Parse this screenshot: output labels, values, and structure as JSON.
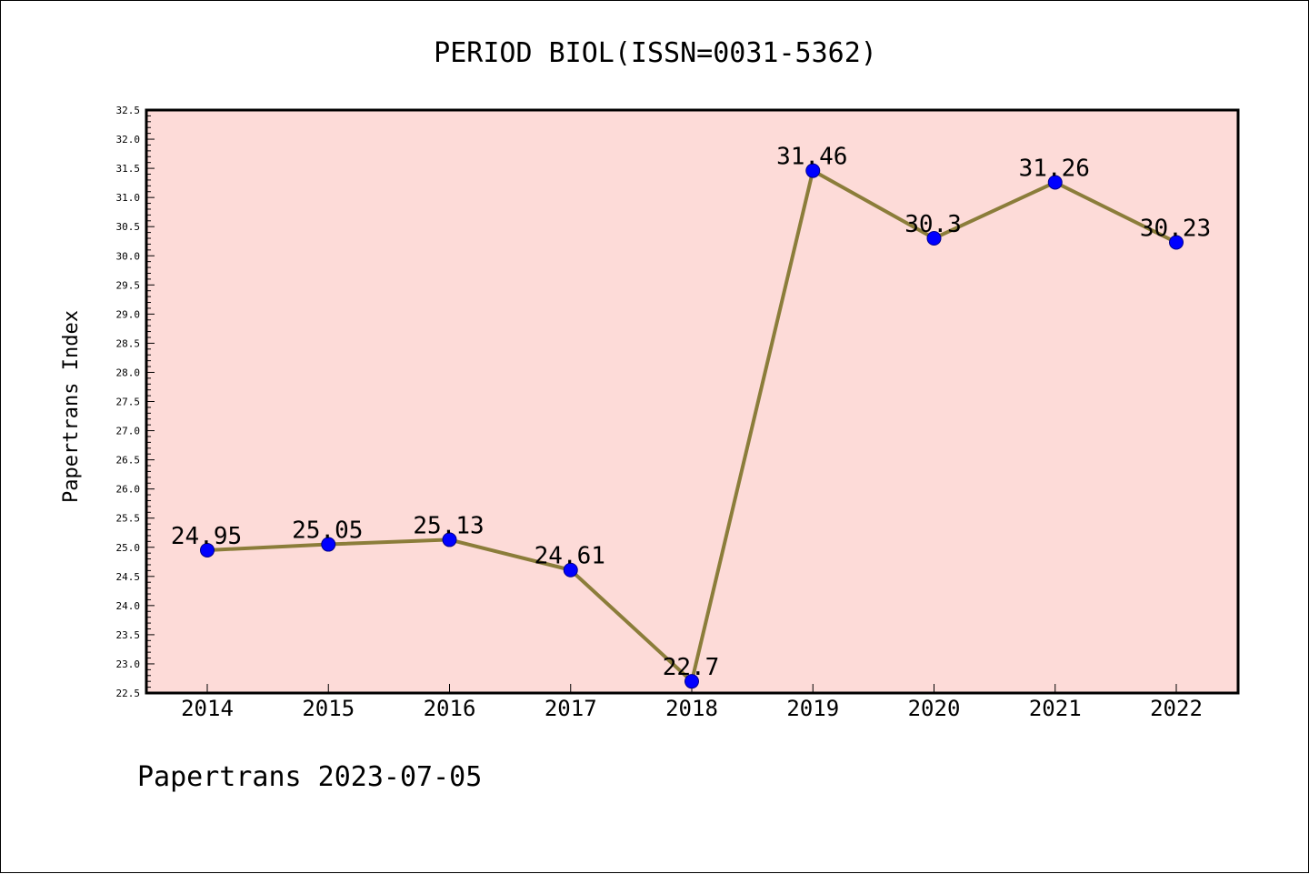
{
  "chart_data": {
    "type": "line",
    "title": "PERIOD BIOL(ISSN=0031-5362)",
    "xlabel": "",
    "ylabel": "Papertrans Index",
    "categories": [
      "2014",
      "2015",
      "2016",
      "2017",
      "2018",
      "2019",
      "2020",
      "2021",
      "2022"
    ],
    "values": [
      24.95,
      25.05,
      25.13,
      24.61,
      22.7,
      31.46,
      30.3,
      31.26,
      30.23
    ],
    "data_labels": [
      "24.95",
      "25.05",
      "25.13",
      "24.61",
      "22.7",
      "31.46",
      "30.3",
      "31.26",
      "30.23"
    ],
    "ylim": [
      22.5,
      32.5
    ],
    "y_major_step": 0.5,
    "y_minor_step": 0.1,
    "y_tick_labels": [
      "22.5",
      "23.0",
      "23.5",
      "24.0",
      "24.5",
      "25.0",
      "25.5",
      "26.0",
      "26.5",
      "27.0",
      "27.5",
      "28.0",
      "28.5",
      "29.0",
      "29.5",
      "30.0",
      "30.5",
      "31.0",
      "31.5",
      "32.0",
      "32.5"
    ],
    "grid": false,
    "legend": "none",
    "colors": {
      "plot_background": "#fddbd8",
      "line": "#8b7d3a",
      "marker_fill": "#0000ff",
      "marker_edge": "#00008b",
      "axes": "#000000"
    }
  },
  "footer": {
    "text": "Papertrans 2023-07-05"
  }
}
